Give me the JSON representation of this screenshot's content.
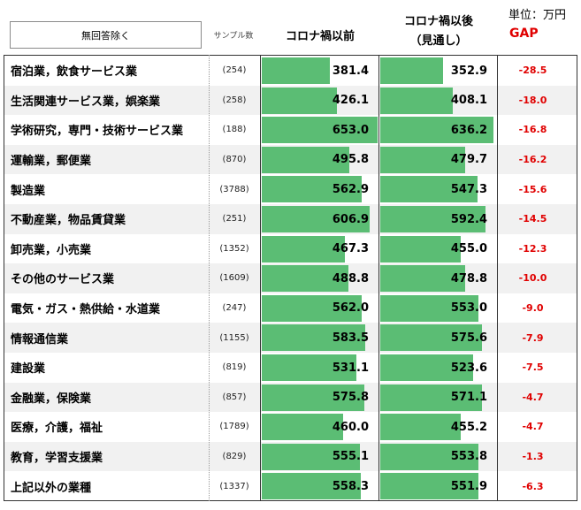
{
  "unit_label": "単位：万円",
  "filter": {
    "label": "無回答除く"
  },
  "headers": {
    "sample": "サンプル数",
    "before": "コロナ禍以前",
    "after_line1": "コロナ禍以後",
    "after_line2": "（見通し）",
    "gap": "GAP"
  },
  "colors": {
    "bar": "#5bbd74",
    "gap_text": "#e00000"
  },
  "chart_data": {
    "type": "table",
    "bar_scale_max": 653.0,
    "rows": [
      {
        "industry": "宿泊業，飲食サービス業",
        "sample": "(254)",
        "before": 381.4,
        "after": 352.9,
        "gap": -28.5
      },
      {
        "industry": "生活関連サービス業，娯楽業",
        "sample": "(258)",
        "before": 426.1,
        "after": 408.1,
        "gap": -18.0
      },
      {
        "industry": "学術研究，専門・技術サービス業",
        "sample": "(188)",
        "before": 653.0,
        "after": 636.2,
        "gap": -16.8
      },
      {
        "industry": "運輸業，郵便業",
        "sample": "(870)",
        "before": 495.8,
        "after": 479.7,
        "gap": -16.2
      },
      {
        "industry": "製造業",
        "sample": "(3788)",
        "before": 562.9,
        "after": 547.3,
        "gap": -15.6
      },
      {
        "industry": "不動産業，物品賃貸業",
        "sample": "(251)",
        "before": 606.9,
        "after": 592.4,
        "gap": -14.5
      },
      {
        "industry": "卸売業，小売業",
        "sample": "(1352)",
        "before": 467.3,
        "after": 455.0,
        "gap": -12.3
      },
      {
        "industry": "その他のサービス業",
        "sample": "(1609)",
        "before": 488.8,
        "after": 478.8,
        "gap": -10.0
      },
      {
        "industry": "電気・ガス・熱供給・水道業",
        "sample": "(247)",
        "before": 562.0,
        "after": 553.0,
        "gap": -9.0
      },
      {
        "industry": "情報通信業",
        "sample": "(1155)",
        "before": 583.5,
        "after": 575.6,
        "gap": -7.9
      },
      {
        "industry": "建設業",
        "sample": "(819)",
        "before": 531.1,
        "after": 523.6,
        "gap": -7.5
      },
      {
        "industry": "金融業，保険業",
        "sample": "(857)",
        "before": 575.8,
        "after": 571.1,
        "gap": -4.7
      },
      {
        "industry": "医療，介護，福祉",
        "sample": "(1789)",
        "before": 460.0,
        "after": 455.2,
        "gap": -4.7
      },
      {
        "industry": "教育，学習支援業",
        "sample": "(829)",
        "before": 555.1,
        "after": 553.8,
        "gap": -1.3
      },
      {
        "industry": "上記以外の業種",
        "sample": "(1337)",
        "before": 558.3,
        "after": 551.9,
        "gap": -6.3
      }
    ]
  }
}
